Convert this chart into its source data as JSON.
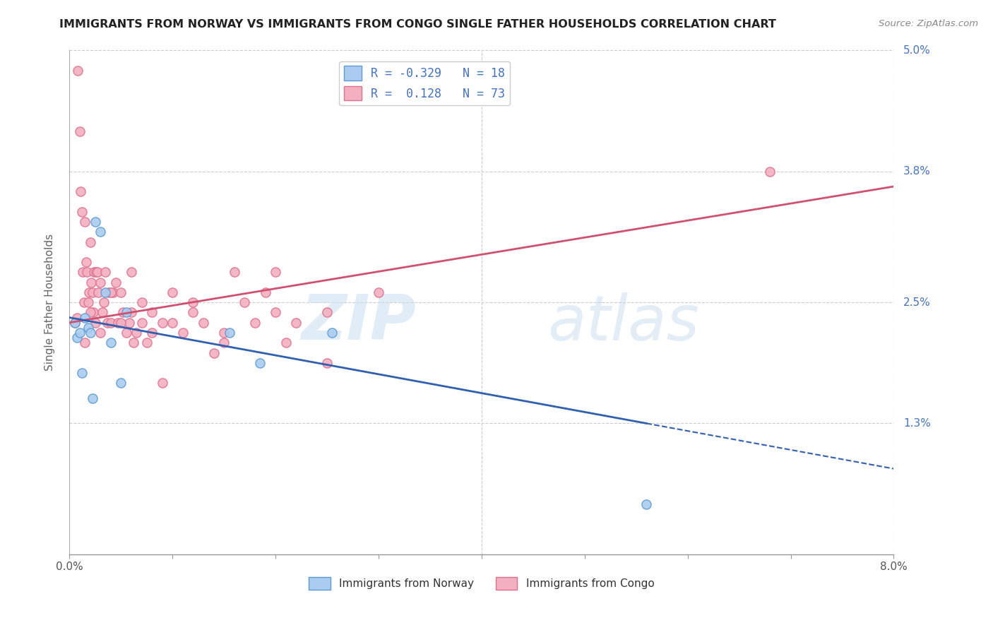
{
  "title": "IMMIGRANTS FROM NORWAY VS IMMIGRANTS FROM CONGO SINGLE FATHER HOUSEHOLDS CORRELATION CHART",
  "source": "Source: ZipAtlas.com",
  "ylabel": "Single Father Households",
  "right_yticks": [
    0.0,
    1.3,
    2.5,
    3.8,
    5.0
  ],
  "right_ytick_labels": [
    "",
    "1.3%",
    "2.5%",
    "3.8%",
    "5.0%"
  ],
  "xmin": 0.0,
  "xmax": 8.0,
  "ymin": 0.0,
  "ymax": 5.0,
  "norway_color": "#aaccf0",
  "norway_edge": "#5b9bd5",
  "congo_color": "#f4b0c0",
  "congo_edge": "#e07090",
  "norway_line_color": "#3060b0",
  "congo_line_color": "#d05070",
  "norway_R": -0.329,
  "norway_N": 18,
  "congo_R": 0.128,
  "congo_N": 73,
  "norway_scatter_x": [
    0.05,
    0.07,
    0.1,
    0.12,
    0.15,
    0.18,
    0.2,
    0.22,
    0.25,
    0.3,
    0.35,
    0.4,
    0.5,
    0.55,
    1.55,
    1.85,
    2.55,
    5.6
  ],
  "norway_scatter_y": [
    2.3,
    2.15,
    2.2,
    1.8,
    2.35,
    2.25,
    2.2,
    1.55,
    3.3,
    3.2,
    2.6,
    2.1,
    1.7,
    2.4,
    2.2,
    1.9,
    2.2,
    0.5
  ],
  "congo_scatter_x": [
    0.05,
    0.07,
    0.08,
    0.1,
    0.11,
    0.12,
    0.13,
    0.14,
    0.15,
    0.16,
    0.17,
    0.18,
    0.19,
    0.2,
    0.21,
    0.22,
    0.23,
    0.24,
    0.25,
    0.26,
    0.27,
    0.28,
    0.3,
    0.32,
    0.33,
    0.35,
    0.37,
    0.38,
    0.4,
    0.42,
    0.45,
    0.47,
    0.5,
    0.52,
    0.55,
    0.58,
    0.6,
    0.62,
    0.65,
    0.7,
    0.75,
    0.8,
    0.9,
    1.0,
    1.1,
    1.2,
    1.3,
    1.4,
    1.5,
    1.6,
    1.7,
    1.8,
    1.9,
    2.0,
    2.1,
    2.2,
    2.5,
    0.15,
    0.2,
    0.3,
    0.4,
    0.5,
    0.6,
    0.7,
    0.8,
    0.9,
    1.0,
    1.2,
    1.5,
    2.0,
    2.5,
    3.0,
    6.8
  ],
  "congo_scatter_y": [
    2.3,
    2.35,
    4.8,
    4.2,
    3.6,
    3.4,
    2.8,
    2.5,
    3.3,
    2.9,
    2.8,
    2.5,
    2.6,
    3.1,
    2.7,
    2.6,
    2.4,
    2.8,
    2.3,
    2.8,
    2.8,
    2.6,
    2.2,
    2.4,
    2.5,
    2.8,
    2.3,
    2.6,
    2.3,
    2.6,
    2.7,
    2.3,
    2.6,
    2.4,
    2.2,
    2.3,
    2.4,
    2.1,
    2.2,
    2.3,
    2.1,
    2.2,
    1.7,
    2.3,
    2.2,
    2.5,
    2.3,
    2.0,
    2.2,
    2.8,
    2.5,
    2.3,
    2.6,
    2.4,
    2.1,
    2.3,
    1.9,
    2.1,
    2.4,
    2.7,
    2.6,
    2.3,
    2.8,
    2.5,
    2.4,
    2.3,
    2.6,
    2.4,
    2.1,
    2.8,
    2.4,
    2.6,
    3.8
  ],
  "watermark_zip": "ZIP",
  "watermark_atlas": "atlas",
  "legend_norway_label": "Immigrants from Norway",
  "legend_congo_label": "Immigrants from Congo",
  "norway_line_x0": 0.0,
  "norway_line_y0": 2.35,
  "norway_line_x1": 5.6,
  "norway_line_y1": 1.3,
  "norway_dash_x0": 5.6,
  "norway_dash_y0": 1.3,
  "norway_dash_x1": 8.0,
  "norway_dash_y1": 0.85,
  "congo_line_x0": 0.0,
  "congo_line_y0": 2.3,
  "congo_line_x1": 8.0,
  "congo_line_y1": 3.65
}
